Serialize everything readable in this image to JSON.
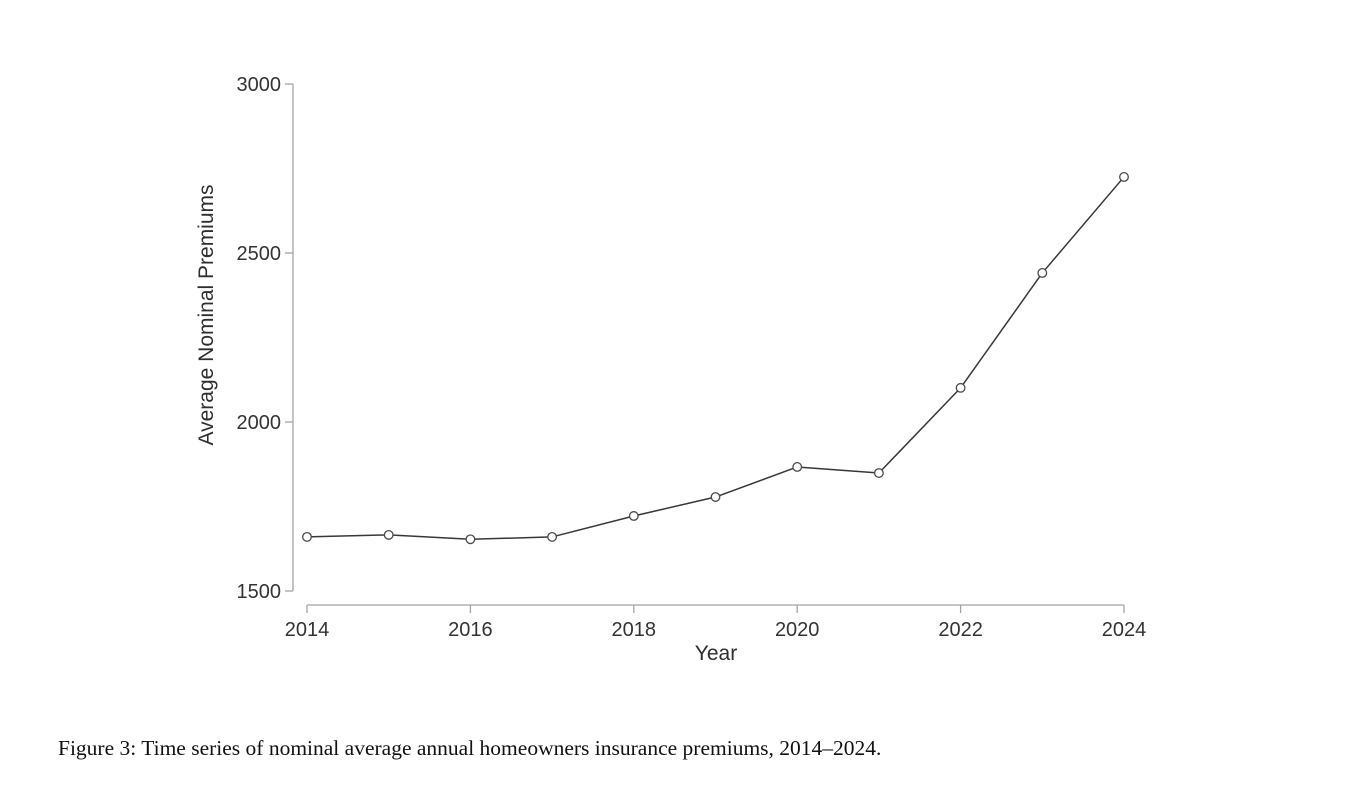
{
  "caption": "Figure 3: Time series of nominal average annual homeowners insurance premiums, 2014–2024.",
  "chart_data": {
    "type": "line",
    "x": [
      2014,
      2015,
      2016,
      2017,
      2018,
      2019,
      2020,
      2021,
      2022,
      2023,
      2024
    ],
    "series": [
      {
        "name": "Average Nominal Premiums",
        "values": [
          1660,
          1666,
          1653,
          1660,
          1722,
          1778,
          1867,
          1849,
          2101,
          2441,
          2725
        ]
      }
    ],
    "xlabel": "Year",
    "ylabel": "Average Nominal Premiums",
    "x_ticks": [
      2014,
      2016,
      2018,
      2020,
      2022,
      2024
    ],
    "y_ticks": [
      1500,
      2000,
      2500,
      3000
    ],
    "xlim": [
      2014,
      2024
    ],
    "ylim": [
      1500,
      3000
    ],
    "grid": false,
    "legend": "none",
    "marker": "open-circle",
    "line_color": "#383838",
    "marker_color": "#4a4a4a",
    "marker_fill": "#ffffff",
    "axis_color": "#a3a3a3",
    "tick_label_color": "#333333",
    "background_color": "#ffffff"
  }
}
